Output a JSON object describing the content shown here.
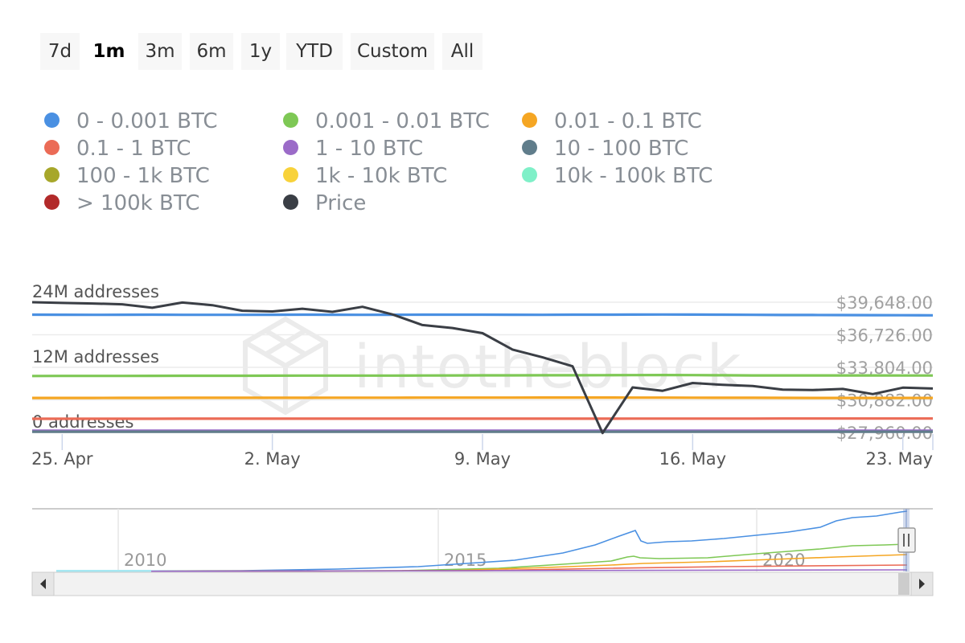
{
  "range_selector": {
    "buttons": [
      {
        "label": "7d",
        "active": false
      },
      {
        "label": "1m",
        "active": true
      },
      {
        "label": "3m",
        "active": false
      },
      {
        "label": "6m",
        "active": false
      },
      {
        "label": "1y",
        "active": false
      },
      {
        "label": "YTD",
        "active": false
      },
      {
        "label": "Custom",
        "active": false
      },
      {
        "label": "All",
        "active": false
      }
    ]
  },
  "watermark": "intotheblock",
  "legend": [
    {
      "label": "0 - 0.001 BTC",
      "color": "#4a90e2"
    },
    {
      "label": "0.001 - 0.01 BTC",
      "color": "#7ec855"
    },
    {
      "label": "0.01 - 0.1 BTC",
      "color": "#f5a623"
    },
    {
      "label": "0.1 - 1 BTC",
      "color": "#eb6b56"
    },
    {
      "label": "1 - 10 BTC",
      "color": "#9b6bc8"
    },
    {
      "label": "10 - 100 BTC",
      "color": "#607d8b"
    },
    {
      "label": "100 - 1k BTC",
      "color": "#a7a72a"
    },
    {
      "label": "1k - 10k BTC",
      "color": "#f8d23a"
    },
    {
      "label": "10k - 100k BTC",
      "color": "#7ff0c8"
    },
    {
      "label": "> 100k BTC",
      "color": "#b22a2a"
    },
    {
      "label": "Price",
      "color": "#3a3e45"
    }
  ],
  "chart_data": {
    "type": "line",
    "x_ticks": [
      "25. Apr",
      "2. May",
      "9. May",
      "16. May",
      "23. May"
    ],
    "y_left": {
      "ticks": [
        "0 addresses",
        "12M addresses",
        "24M addresses"
      ],
      "range": [
        0,
        24000000
      ]
    },
    "y_right": {
      "ticks": [
        "$27,960.00",
        "$30,882.00",
        "$33,804.00",
        "$36,726.00",
        "$39,648.00"
      ],
      "range": [
        27960,
        39648
      ]
    },
    "x": [
      "2021-04-24",
      "2021-04-25",
      "2021-04-26",
      "2021-04-27",
      "2021-04-28",
      "2021-04-29",
      "2021-04-30",
      "2021-05-01",
      "2021-05-02",
      "2021-05-03",
      "2021-05-04",
      "2021-05-05",
      "2021-05-06",
      "2021-05-07",
      "2021-05-08",
      "2021-05-09",
      "2021-05-10",
      "2021-05-11",
      "2021-05-12",
      "2021-05-13",
      "2021-05-14",
      "2021-05-15",
      "2021-05-16",
      "2021-05-17",
      "2021-05-18",
      "2021-05-19",
      "2021-05-20",
      "2021-05-21",
      "2021-05-22",
      "2021-05-23",
      "2021-05-24"
    ],
    "series": [
      {
        "name": "0 - 0.001 BTC",
        "axis": "addresses",
        "values": [
          21700000,
          21690000,
          21680000,
          21690000,
          21700000,
          21680000,
          21680000,
          21670000,
          21690000,
          21700000,
          21690000,
          21680000,
          21690000,
          21700000,
          21710000,
          21700000,
          21690000,
          21680000,
          21700000,
          21710000,
          21720000,
          21730000,
          21720000,
          21700000,
          21680000,
          21650000,
          21640000,
          21630000,
          21620000,
          21600000,
          21580000
        ]
      },
      {
        "name": "0.001 - 0.01 BTC",
        "axis": "addresses",
        "values": [
          10400000,
          10410000,
          10420000,
          10420000,
          10430000,
          10440000,
          10440000,
          10450000,
          10460000,
          10470000,
          10470000,
          10480000,
          10480000,
          10490000,
          10500000,
          10520000,
          10520000,
          10530000,
          10540000,
          10550000,
          10570000,
          10580000,
          10560000,
          10530000,
          10510000,
          10500000,
          10500000,
          10500000,
          10500000,
          10490000,
          10490000
        ]
      },
      {
        "name": "0.01 - 0.1 BTC",
        "axis": "addresses",
        "values": [
          6350000,
          6360000,
          6360000,
          6370000,
          6370000,
          6380000,
          6380000,
          6380000,
          6390000,
          6390000,
          6400000,
          6400000,
          6400000,
          6410000,
          6410000,
          6410000,
          6420000,
          6430000,
          6430000,
          6430000,
          6420000,
          6410000,
          6400000,
          6390000,
          6380000,
          6370000,
          6360000,
          6360000,
          6350000,
          6360000,
          6360000
        ]
      },
      {
        "name": "0.1 - 1 BTC",
        "axis": "addresses",
        "values": [
          2520000,
          2520000,
          2520000,
          2520000,
          2520000,
          2530000,
          2530000,
          2530000,
          2530000,
          2530000,
          2530000,
          2530000,
          2530000,
          2540000,
          2540000,
          2540000,
          2540000,
          2540000,
          2540000,
          2540000,
          2550000,
          2550000,
          2550000,
          2550000,
          2550000,
          2560000,
          2560000,
          2560000,
          2560000,
          2560000,
          2560000
        ]
      },
      {
        "name": "1 - 10 BTC",
        "axis": "addresses",
        "values": [
          310000,
          310000,
          310000,
          310000,
          310000,
          310000,
          310000,
          310000,
          310000,
          310000,
          310000,
          310000,
          310000,
          310000,
          310000,
          310000,
          310000,
          310000,
          310000,
          310000,
          310000,
          310000,
          310000,
          310000,
          310000,
          310000,
          310000,
          310000,
          310000,
          310000,
          310000
        ]
      },
      {
        "name": "10 - 100 BTC",
        "axis": "addresses",
        "values": [
          140000,
          140000,
          140000,
          140000,
          140000,
          140000,
          140000,
          140000,
          140000,
          140000,
          140000,
          140000,
          140000,
          140000,
          140000,
          140000,
          140000,
          140000,
          140000,
          140000,
          140000,
          140000,
          140000,
          140000,
          140000,
          140000,
          140000,
          140000,
          140000,
          140000,
          140000
        ]
      },
      {
        "name": "Price",
        "axis": "price",
        "values": [
          39650,
          39580,
          39530,
          39460,
          39150,
          39620,
          39380,
          38880,
          38820,
          39060,
          38780,
          39240,
          38550,
          37600,
          37330,
          36870,
          35400,
          34700,
          33900,
          27900,
          32000,
          31700,
          32400,
          32230,
          32120,
          31800,
          31760,
          31860,
          31400,
          31980,
          31900
        ]
      }
    ]
  },
  "navigator": {
    "years": [
      "2010",
      "2015",
      "2020"
    ]
  }
}
